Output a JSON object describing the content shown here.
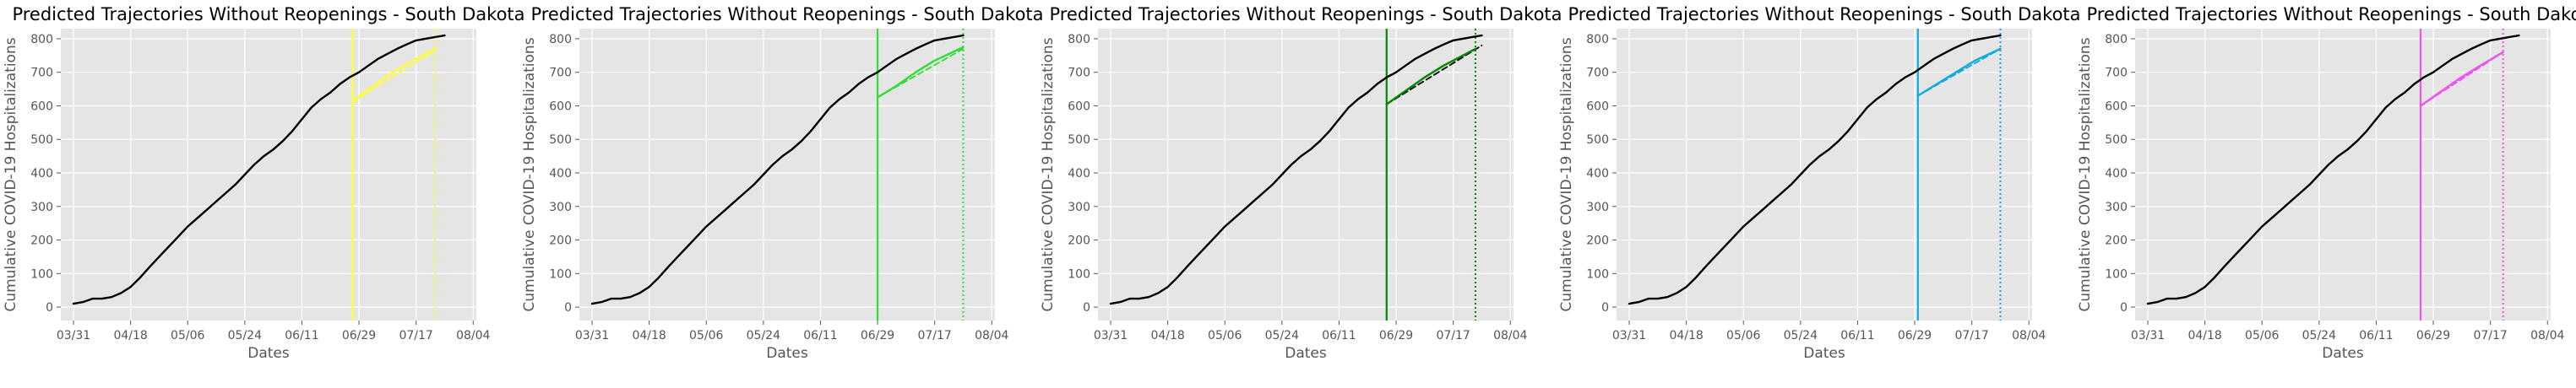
{
  "chart_data": [
    {
      "type": "line",
      "title": "Predicted Trajectories Without Reopenings - South Dakota",
      "xlabel": "Dates",
      "ylabel": "Cumulative COVID-19 Hospitalizations",
      "x_ticks": [
        "03/31",
        "04/18",
        "05/06",
        "05/24",
        "06/11",
        "06/29",
        "07/17",
        "08/04"
      ],
      "y_ticks": [
        0,
        100,
        200,
        300,
        400,
        500,
        600,
        700,
        800
      ],
      "xlim": [
        "2020-03-27",
        "2020-08-05"
      ],
      "ylim": [
        -40,
        830
      ],
      "grid": true,
      "accent_color": "#ffff33",
      "event_date": "2020-06-27",
      "end_date": "2020-07-23",
      "series": [
        {
          "style": "solid",
          "color": "#000000",
          "x": [
            "2020-03-31",
            "2020-04-03",
            "2020-04-06",
            "2020-04-09",
            "2020-04-12",
            "2020-04-15",
            "2020-04-18",
            "2020-04-21",
            "2020-04-24",
            "2020-04-27",
            "2020-04-30",
            "2020-05-03",
            "2020-05-06",
            "2020-05-09",
            "2020-05-12",
            "2020-05-15",
            "2020-05-18",
            "2020-05-21",
            "2020-05-24",
            "2020-05-27",
            "2020-05-30",
            "2020-06-02",
            "2020-06-05",
            "2020-06-08",
            "2020-06-11",
            "2020-06-14",
            "2020-06-17",
            "2020-06-20",
            "2020-06-23",
            "2020-06-26",
            "2020-06-29",
            "2020-07-02",
            "2020-07-05",
            "2020-07-08",
            "2020-07-11",
            "2020-07-14",
            "2020-07-17",
            "2020-07-20",
            "2020-07-23",
            "2020-07-26"
          ],
          "y": [
            10,
            15,
            25,
            25,
            30,
            42,
            60,
            88,
            120,
            150,
            180,
            210,
            240,
            265,
            290,
            315,
            340,
            365,
            395,
            425,
            450,
            470,
            495,
            525,
            560,
            595,
            620,
            640,
            665,
            685,
            700,
            720,
            740,
            755,
            770,
            783,
            795,
            800,
            805,
            810
          ]
        },
        {
          "style": "dashed",
          "color": "#ffff33",
          "x": [
            "2020-06-27",
            "2020-07-23"
          ],
          "y": [
            612,
            765
          ]
        },
        {
          "style": "solid",
          "color": "#ffff33",
          "x": [
            "2020-06-27",
            "2020-07-02",
            "2020-07-08",
            "2020-07-14",
            "2020-07-20",
            "2020-07-23"
          ],
          "y": [
            612,
            650,
            690,
            725,
            755,
            770
          ]
        }
      ]
    },
    {
      "type": "line",
      "title": "Predicted Trajectories Without Reopenings - South Dakota",
      "xlabel": "Dates",
      "ylabel": "Cumulative COVID-19 Hospitalizations",
      "x_ticks": [
        "03/31",
        "04/18",
        "05/06",
        "05/24",
        "06/11",
        "06/29",
        "07/17",
        "08/04"
      ],
      "y_ticks": [
        0,
        100,
        200,
        300,
        400,
        500,
        600,
        700,
        800
      ],
      "xlim": [
        "2020-03-27",
        "2020-08-05"
      ],
      "ylim": [
        -40,
        830
      ],
      "grid": true,
      "accent_color": "#33dd33",
      "event_date": "2020-06-29",
      "end_date": "2020-07-26",
      "series": [
        {
          "style": "solid",
          "color": "#000000",
          "x": [
            "2020-03-31",
            "2020-04-03",
            "2020-04-06",
            "2020-04-09",
            "2020-04-12",
            "2020-04-15",
            "2020-04-18",
            "2020-04-21",
            "2020-04-24",
            "2020-04-27",
            "2020-04-30",
            "2020-05-03",
            "2020-05-06",
            "2020-05-09",
            "2020-05-12",
            "2020-05-15",
            "2020-05-18",
            "2020-05-21",
            "2020-05-24",
            "2020-05-27",
            "2020-05-30",
            "2020-06-02",
            "2020-06-05",
            "2020-06-08",
            "2020-06-11",
            "2020-06-14",
            "2020-06-17",
            "2020-06-20",
            "2020-06-23",
            "2020-06-26",
            "2020-06-29",
            "2020-07-02",
            "2020-07-05",
            "2020-07-08",
            "2020-07-11",
            "2020-07-14",
            "2020-07-17",
            "2020-07-20",
            "2020-07-23",
            "2020-07-26"
          ],
          "y": [
            10,
            15,
            25,
            25,
            30,
            42,
            60,
            88,
            120,
            150,
            180,
            210,
            240,
            265,
            290,
            315,
            340,
            365,
            395,
            425,
            450,
            470,
            495,
            525,
            560,
            595,
            620,
            640,
            665,
            685,
            700,
            720,
            740,
            755,
            770,
            783,
            795,
            800,
            805,
            810
          ]
        },
        {
          "style": "dashed",
          "color": "#33dd33",
          "x": [
            "2020-06-29",
            "2020-07-26"
          ],
          "y": [
            625,
            770
          ]
        },
        {
          "style": "solid",
          "color": "#33dd33",
          "x": [
            "2020-06-29",
            "2020-07-05",
            "2020-07-11",
            "2020-07-17",
            "2020-07-26"
          ],
          "y": [
            625,
            660,
            700,
            735,
            775
          ]
        }
      ]
    },
    {
      "type": "line",
      "title": "Predicted Trajectories Without Reopenings - South Dakota",
      "xlabel": "Dates",
      "ylabel": "Cumulative COVID-19 Hospitalizations",
      "x_ticks": [
        "03/31",
        "04/18",
        "05/06",
        "05/24",
        "06/11",
        "06/29",
        "07/17",
        "08/04"
      ],
      "y_ticks": [
        0,
        100,
        200,
        300,
        400,
        500,
        600,
        700,
        800
      ],
      "xlim": [
        "2020-03-27",
        "2020-08-05"
      ],
      "ylim": [
        -40,
        830
      ],
      "grid": true,
      "accent_color": "#008800",
      "event_date": "2020-06-26",
      "end_date": "2020-07-24",
      "series": [
        {
          "style": "solid",
          "color": "#000000",
          "x": [
            "2020-03-31",
            "2020-04-03",
            "2020-04-06",
            "2020-04-09",
            "2020-04-12",
            "2020-04-15",
            "2020-04-18",
            "2020-04-21",
            "2020-04-24",
            "2020-04-27",
            "2020-04-30",
            "2020-05-03",
            "2020-05-06",
            "2020-05-09",
            "2020-05-12",
            "2020-05-15",
            "2020-05-18",
            "2020-05-21",
            "2020-05-24",
            "2020-05-27",
            "2020-05-30",
            "2020-06-02",
            "2020-06-05",
            "2020-06-08",
            "2020-06-11",
            "2020-06-14",
            "2020-06-17",
            "2020-06-20",
            "2020-06-23",
            "2020-06-26",
            "2020-06-29",
            "2020-07-02",
            "2020-07-05",
            "2020-07-08",
            "2020-07-11",
            "2020-07-14",
            "2020-07-17",
            "2020-07-20",
            "2020-07-23",
            "2020-07-26"
          ],
          "y": [
            10,
            15,
            25,
            25,
            30,
            42,
            60,
            88,
            120,
            150,
            180,
            210,
            240,
            265,
            290,
            315,
            340,
            365,
            395,
            425,
            450,
            470,
            495,
            525,
            560,
            595,
            620,
            640,
            665,
            685,
            700,
            720,
            740,
            755,
            770,
            783,
            795,
            800,
            805,
            810
          ]
        },
        {
          "style": "dashed",
          "color": "#000000",
          "x": [
            "2020-06-26",
            "2020-07-26"
          ],
          "y": [
            605,
            780
          ]
        },
        {
          "style": "solid",
          "color": "#008800",
          "x": [
            "2020-06-26",
            "2020-07-02",
            "2020-07-08",
            "2020-07-14",
            "2020-07-24"
          ],
          "y": [
            605,
            645,
            685,
            720,
            770
          ]
        }
      ]
    },
    {
      "type": "line",
      "title": "Predicted Trajectories Without Reopenings - South Dakota",
      "xlabel": "Dates",
      "ylabel": "Cumulative COVID-19 Hospitalizations",
      "x_ticks": [
        "03/31",
        "04/18",
        "05/06",
        "05/24",
        "06/11",
        "06/29",
        "07/17",
        "08/04"
      ],
      "y_ticks": [
        0,
        100,
        200,
        300,
        400,
        500,
        600,
        700,
        800
      ],
      "xlim": [
        "2020-03-27",
        "2020-08-05"
      ],
      "ylim": [
        -40,
        830
      ],
      "grid": true,
      "accent_color": "#11aadd",
      "event_date": "2020-06-30",
      "end_date": "2020-07-26",
      "series": [
        {
          "style": "solid",
          "color": "#000000",
          "x": [
            "2020-03-31",
            "2020-04-03",
            "2020-04-06",
            "2020-04-09",
            "2020-04-12",
            "2020-04-15",
            "2020-04-18",
            "2020-04-21",
            "2020-04-24",
            "2020-04-27",
            "2020-04-30",
            "2020-05-03",
            "2020-05-06",
            "2020-05-09",
            "2020-05-12",
            "2020-05-15",
            "2020-05-18",
            "2020-05-21",
            "2020-05-24",
            "2020-05-27",
            "2020-05-30",
            "2020-06-02",
            "2020-06-05",
            "2020-06-08",
            "2020-06-11",
            "2020-06-14",
            "2020-06-17",
            "2020-06-20",
            "2020-06-23",
            "2020-06-26",
            "2020-06-29",
            "2020-07-02",
            "2020-07-05",
            "2020-07-08",
            "2020-07-11",
            "2020-07-14",
            "2020-07-17",
            "2020-07-20",
            "2020-07-23",
            "2020-07-26"
          ],
          "y": [
            10,
            15,
            25,
            25,
            30,
            42,
            60,
            88,
            120,
            150,
            180,
            210,
            240,
            265,
            290,
            315,
            340,
            365,
            395,
            425,
            450,
            470,
            495,
            525,
            560,
            595,
            620,
            640,
            665,
            685,
            700,
            720,
            740,
            755,
            770,
            783,
            795,
            800,
            805,
            810
          ]
        },
        {
          "style": "dashed",
          "color": "#11aadd",
          "x": [
            "2020-06-30",
            "2020-07-26"
          ],
          "y": [
            630,
            770
          ]
        },
        {
          "style": "solid",
          "color": "#11aadd",
          "x": [
            "2020-06-30",
            "2020-07-06",
            "2020-07-12",
            "2020-07-18",
            "2020-07-26"
          ],
          "y": [
            630,
            665,
            700,
            735,
            770
          ]
        }
      ]
    },
    {
      "type": "line",
      "title": "Predicted Trajectories Without Reopenings - South Dakota",
      "xlabel": "Dates",
      "ylabel": "Cumulative COVID-19 Hospitalizations",
      "x_ticks": [
        "03/31",
        "04/18",
        "05/06",
        "05/24",
        "06/11",
        "06/29",
        "07/17",
        "08/04"
      ],
      "y_ticks": [
        0,
        100,
        200,
        300,
        400,
        500,
        600,
        700,
        800
      ],
      "xlim": [
        "2020-03-27",
        "2020-08-05"
      ],
      "ylim": [
        -40,
        830
      ],
      "grid": true,
      "accent_color": "#ee55ee",
      "event_date": "2020-06-25",
      "end_date": "2020-07-21",
      "series": [
        {
          "style": "solid",
          "color": "#000000",
          "x": [
            "2020-03-31",
            "2020-04-03",
            "2020-04-06",
            "2020-04-09",
            "2020-04-12",
            "2020-04-15",
            "2020-04-18",
            "2020-04-21",
            "2020-04-24",
            "2020-04-27",
            "2020-04-30",
            "2020-05-03",
            "2020-05-06",
            "2020-05-09",
            "2020-05-12",
            "2020-05-15",
            "2020-05-18",
            "2020-05-21",
            "2020-05-24",
            "2020-05-27",
            "2020-05-30",
            "2020-06-02",
            "2020-06-05",
            "2020-06-08",
            "2020-06-11",
            "2020-06-14",
            "2020-06-17",
            "2020-06-20",
            "2020-06-23",
            "2020-06-26",
            "2020-06-29",
            "2020-07-02",
            "2020-07-05",
            "2020-07-08",
            "2020-07-11",
            "2020-07-14",
            "2020-07-17",
            "2020-07-20",
            "2020-07-23",
            "2020-07-26"
          ],
          "y": [
            10,
            15,
            25,
            25,
            30,
            42,
            60,
            88,
            120,
            150,
            180,
            210,
            240,
            265,
            290,
            315,
            340,
            365,
            395,
            425,
            450,
            470,
            495,
            525,
            560,
            595,
            620,
            640,
            665,
            685,
            700,
            720,
            740,
            755,
            770,
            783,
            795,
            800,
            805,
            810
          ]
        },
        {
          "style": "dashed",
          "color": "#ee55ee",
          "x": [
            "2020-06-25",
            "2020-07-21"
          ],
          "y": [
            600,
            760
          ]
        },
        {
          "style": "solid",
          "color": "#ee55ee",
          "x": [
            "2020-06-25",
            "2020-07-01",
            "2020-07-07",
            "2020-07-13",
            "2020-07-21"
          ],
          "y": [
            600,
            640,
            680,
            715,
            760
          ]
        }
      ]
    }
  ]
}
